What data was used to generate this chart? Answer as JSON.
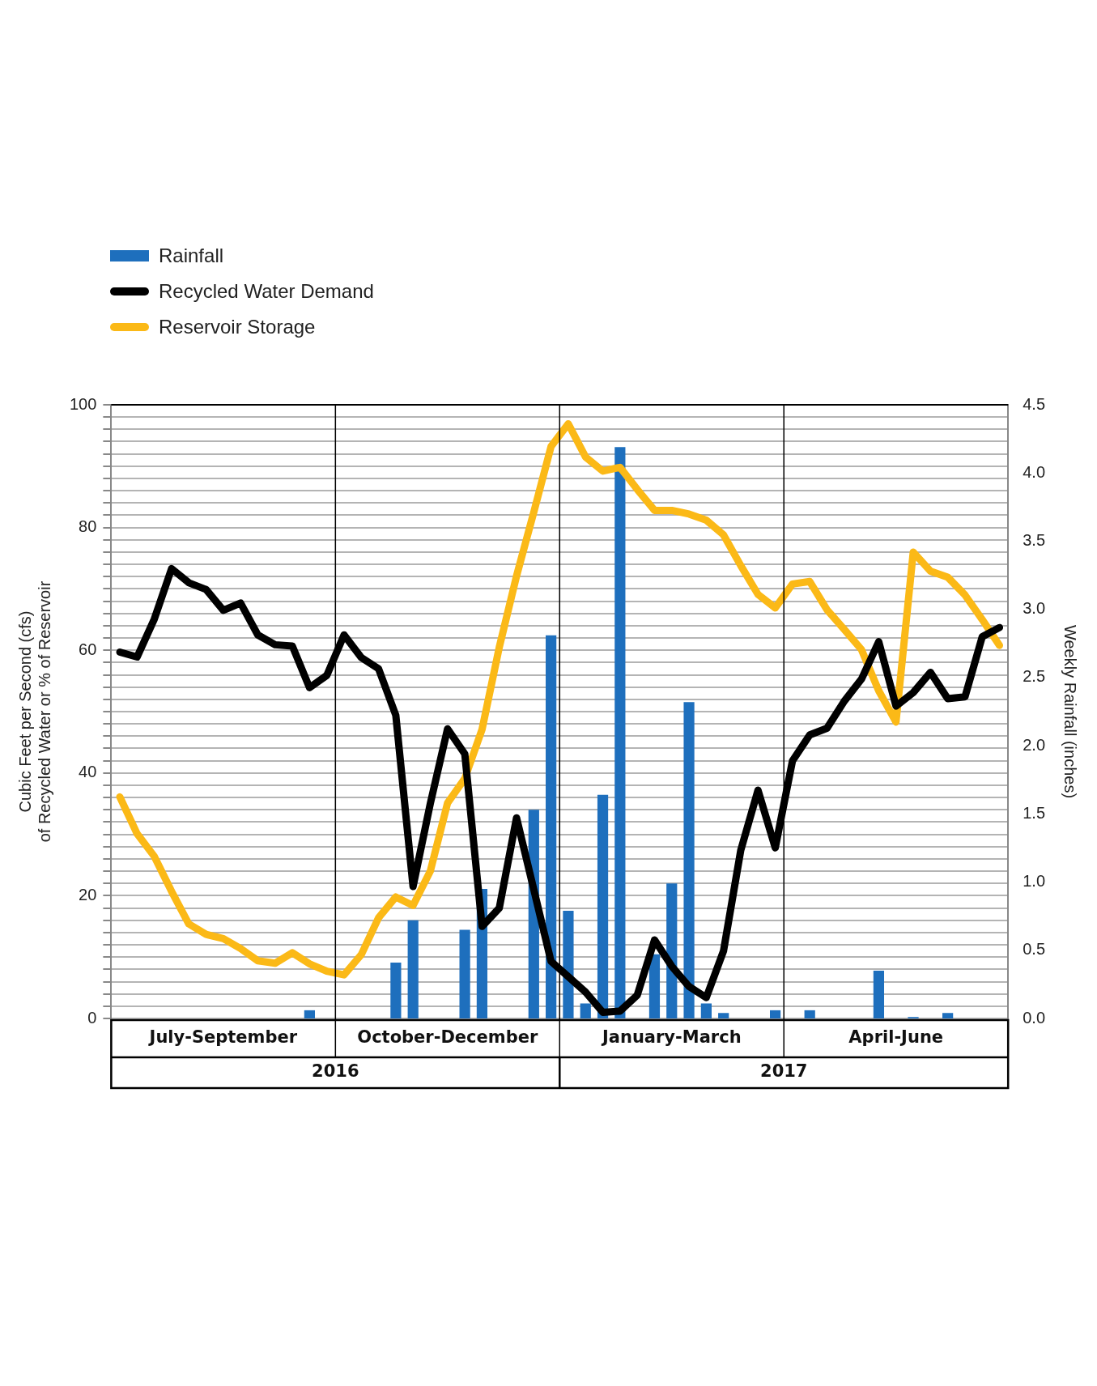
{
  "chart_data": {
    "type": "bar",
    "categories": [
      null,
      null,
      null,
      null,
      null,
      null,
      null,
      null,
      null,
      null,
      null,
      null,
      null,
      null,
      null,
      null,
      null,
      null,
      null,
      null,
      null,
      null,
      null,
      null,
      null,
      null,
      null,
      null,
      null,
      null,
      null,
      null,
      null,
      null,
      null,
      null,
      null,
      null,
      null,
      null,
      null,
      null,
      null,
      null,
      null,
      null,
      null,
      null,
      null,
      null,
      null,
      null
    ],
    "ylabel": "Cubic Feet per Second (cfs)\nof Recycled Water or % of Reservoir",
    "y2label": "Weekly Rainfall (inches)",
    "ylim": [
      0,
      100
    ],
    "yticks": [
      0,
      {
        "value": 2,
        "label": null
      },
      {
        "value": 4,
        "label": null
      },
      {
        "value": 6,
        "label": null
      },
      {
        "value": 8,
        "label": null
      },
      {
        "value": 10,
        "label": null
      },
      {
        "value": 12,
        "label": null
      },
      {
        "value": 14,
        "label": null
      },
      {
        "value": 16,
        "label": null
      },
      {
        "value": 18,
        "label": null
      },
      20,
      {
        "value": 22,
        "label": null
      },
      {
        "value": 24,
        "label": null
      },
      {
        "value": 26,
        "label": null
      },
      {
        "value": 28,
        "label": null
      },
      {
        "value": 30,
        "label": null
      },
      {
        "value": 32,
        "label": null
      },
      {
        "value": 34,
        "label": null
      },
      {
        "value": 36,
        "label": null
      },
      {
        "value": 38,
        "label": null
      },
      40,
      {
        "value": 42,
        "label": null
      },
      {
        "value": 44,
        "label": null
      },
      {
        "value": 46,
        "label": null
      },
      {
        "value": 48,
        "label": null
      },
      {
        "value": 50,
        "label": null
      },
      {
        "value": 52,
        "label": null
      },
      {
        "value": 54,
        "label": null
      },
      {
        "value": 56,
        "label": null
      },
      {
        "value": 58,
        "label": null
      },
      60,
      {
        "value": 62,
        "label": null
      },
      {
        "value": 64,
        "label": null
      },
      {
        "value": 66,
        "label": null
      },
      {
        "value": 68,
        "label": null
      },
      {
        "value": 70,
        "label": null
      },
      {
        "value": 72,
        "label": null
      },
      {
        "value": 74,
        "label": null
      },
      {
        "value": 76,
        "label": null
      },
      {
        "value": 78,
        "label": null
      },
      80,
      {
        "value": 82,
        "label": null
      },
      {
        "value": 84,
        "label": null
      },
      {
        "value": 86,
        "label": null
      },
      {
        "value": 88,
        "label": null
      },
      {
        "value": 90,
        "label": null
      },
      {
        "value": 92,
        "label": null
      },
      {
        "value": 94,
        "label": null
      },
      {
        "value": 96,
        "label": null
      },
      {
        "value": 98,
        "label": null
      },
      100
    ],
    "y2lim": [
      0,
      4.5
    ],
    "y2ticks": [
      {
        "value": 0,
        "label": "0.0"
      },
      0.5,
      {
        "value": 1,
        "label": "1.0"
      },
      1.5,
      {
        "value": 2,
        "label": "2.0"
      },
      2.5,
      {
        "value": 3,
        "label": "3.0"
      },
      3.5,
      {
        "value": 4,
        "label": "4.0"
      },
      4.5
    ],
    "grid": "y",
    "legend": "top left",
    "marker": "none",
    "line_style": "solid",
    "annotations": [
      "July-September",
      "October-December",
      "January-March",
      "April-June",
      "2016",
      "2017"
    ],
    "series": [
      {
        "name": "Rainfall",
        "axis": "y2",
        "color": "#1e6fbd",
        "values": [
          0,
          0,
          0,
          0,
          0,
          0,
          0,
          0,
          0,
          0,
          0,
          0.06,
          0,
          0,
          0,
          0,
          0.41,
          0.72,
          0,
          0,
          0.65,
          0.95,
          0,
          0,
          1.53,
          2.81,
          0.79,
          0.11,
          1.64,
          4.19,
          0,
          0.47,
          0.99,
          2.32,
          0.11,
          0.04,
          0,
          0,
          0.06,
          0,
          0.06,
          0,
          0,
          0,
          0.35,
          0,
          0.01,
          0,
          0.04,
          0,
          0,
          0
        ]
      },
      {
        "name": "Recycled Water Demand",
        "type": "line",
        "color": "#000000",
        "values": [
          59.7,
          58.9,
          65.1,
          73.3,
          71.0,
          69.9,
          66.5,
          67.7,
          62.5,
          60.9,
          60.7,
          53.9,
          55.9,
          62.5,
          58.8,
          57.0,
          49.4,
          21.5,
          35,
          47.2,
          43.1,
          15.0,
          18.0,
          32.7,
          21,
          9.3,
          6.8,
          4.3,
          1.0,
          1.2,
          3.8,
          12.8,
          8.5,
          5.2,
          3.4,
          11.0,
          27.4,
          37.2,
          27.8,
          42.0,
          46.2,
          47.3,
          51.7,
          55.3,
          61.4,
          50.9,
          53.1,
          56.4,
          52.1,
          52.4,
          62.2,
          63.7
        ]
      },
      {
        "name": "Reservoir Storage",
        "type": "line",
        "color": "#fbb917",
        "values": [
          36.1,
          30.1,
          26.4,
          20.7,
          15.4,
          13.7,
          13.0,
          11.4,
          9.4,
          9.0,
          10.7,
          8.9,
          7.7,
          7.1,
          10.4,
          16.4,
          19.8,
          18.4,
          24.0,
          35.1,
          39.1,
          47.1,
          60.5,
          72.1,
          82.5,
          93.2,
          96.9,
          91.5,
          89.2,
          89.8,
          86.2,
          82.8,
          82.8,
          82.2,
          81.2,
          78.8,
          73.8,
          69.1,
          66.9,
          70.8,
          71.2,
          66.6,
          63.4,
          60.1,
          53.4,
          48.3,
          76.0,
          72.9,
          71.9,
          69.0,
          65.0,
          60.8
        ]
      }
    ]
  }
}
